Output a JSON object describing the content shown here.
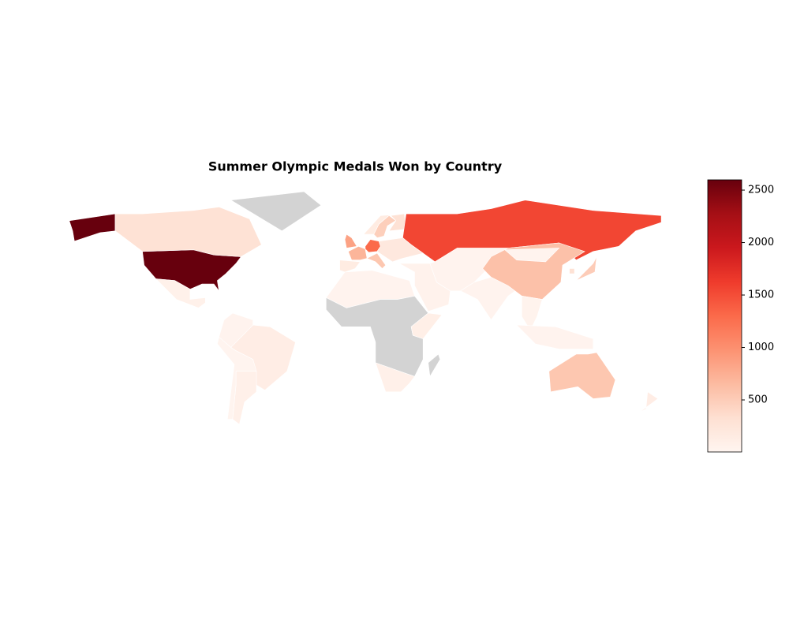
{
  "chart_data": {
    "type": "choropleth",
    "title": "Summer Olympic Medals Won by Country",
    "values": [
      2598,
      2598,
      300,
      null,
      70,
      120,
      75,
      30,
      20,
      30,
      null,
      80,
      100,
      null,
      850,
      700,
      1300,
      550,
      150,
      480,
      150,
      300,
      1550,
      200,
      50,
      30,
      30,
      600,
      30,
      40,
      30,
      500,
      300,
      550,
      120
    ],
    "clim": [
      4,
      2598
    ],
    "cticks": [
      500,
      1000,
      1500,
      2000,
      2500
    ],
    "colormap": [
      "#fff5f0",
      "#fee0d2",
      "#fcbba1",
      "#fc9272",
      "#fb6a4a",
      "#ef3b2c",
      "#cb181d",
      "#a50f15",
      "#67000d"
    ],
    "missing_color": "#d3d3d3"
  }
}
